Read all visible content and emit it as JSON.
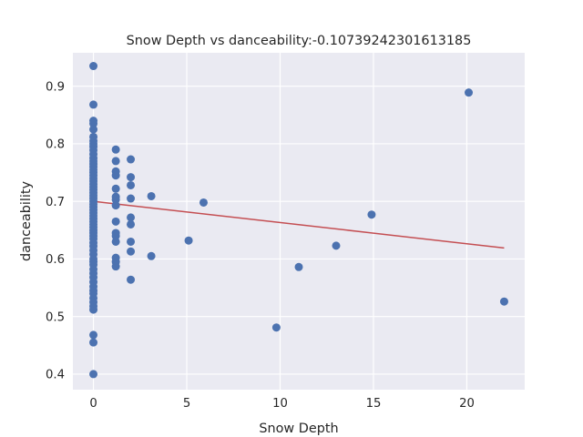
{
  "chart_data": {
    "type": "scatter",
    "title": "Snow Depth vs danceability:-0.10739242301613185",
    "xlabel": "Snow Depth",
    "ylabel": "danceability",
    "xlim": [
      -1.1,
      23.1
    ],
    "ylim": [
      0.373,
      0.958
    ],
    "x_ticks": [
      0,
      5,
      10,
      15,
      20
    ],
    "y_ticks": [
      0.4,
      0.5,
      0.6,
      0.7,
      0.8,
      0.9
    ],
    "x_tick_labels": [
      "0",
      "5",
      "10",
      "15",
      "20"
    ],
    "y_tick_labels": [
      "0.4",
      "0.5",
      "0.6",
      "0.7",
      "0.8",
      "0.9"
    ],
    "grid": true,
    "colors": {
      "background": "#eaeaf2",
      "grid": "#ffffff",
      "points": "#4c72b0",
      "trendline": "#c44e52"
    },
    "points": [
      [
        0,
        0.935
      ],
      [
        0,
        0.868
      ],
      [
        0,
        0.84
      ],
      [
        0,
        0.835
      ],
      [
        0,
        0.825
      ],
      [
        0,
        0.812
      ],
      [
        0,
        0.805
      ],
      [
        0,
        0.8
      ],
      [
        0,
        0.795
      ],
      [
        0,
        0.789
      ],
      [
        0,
        0.782
      ],
      [
        0,
        0.775
      ],
      [
        0,
        0.77
      ],
      [
        0,
        0.765
      ],
      [
        0,
        0.76
      ],
      [
        0,
        0.755
      ],
      [
        0,
        0.75
      ],
      [
        0,
        0.745
      ],
      [
        0,
        0.74
      ],
      [
        0,
        0.735
      ],
      [
        0,
        0.73
      ],
      [
        0,
        0.725
      ],
      [
        0,
        0.72
      ],
      [
        0,
        0.715
      ],
      [
        0,
        0.71
      ],
      [
        0,
        0.705
      ],
      [
        0,
        0.7
      ],
      [
        0,
        0.695
      ],
      [
        0,
        0.69
      ],
      [
        0,
        0.685
      ],
      [
        0,
        0.68
      ],
      [
        0,
        0.675
      ],
      [
        0,
        0.67
      ],
      [
        0,
        0.665
      ],
      [
        0,
        0.66
      ],
      [
        0,
        0.655
      ],
      [
        0,
        0.65
      ],
      [
        0,
        0.645
      ],
      [
        0,
        0.64
      ],
      [
        0,
        0.635
      ],
      [
        0,
        0.628
      ],
      [
        0,
        0.622
      ],
      [
        0,
        0.615
      ],
      [
        0,
        0.608
      ],
      [
        0,
        0.6
      ],
      [
        0,
        0.595
      ],
      [
        0,
        0.59
      ],
      [
        0,
        0.582
      ],
      [
        0,
        0.575
      ],
      [
        0,
        0.568
      ],
      [
        0,
        0.56
      ],
      [
        0,
        0.552
      ],
      [
        0,
        0.545
      ],
      [
        0,
        0.54
      ],
      [
        0,
        0.532
      ],
      [
        0,
        0.525
      ],
      [
        0,
        0.518
      ],
      [
        0,
        0.512
      ],
      [
        0,
        0.468
      ],
      [
        0,
        0.455
      ],
      [
        0,
        0.4
      ],
      [
        1.2,
        0.79
      ],
      [
        1.2,
        0.77
      ],
      [
        1.2,
        0.752
      ],
      [
        1.2,
        0.745
      ],
      [
        1.2,
        0.722
      ],
      [
        1.2,
        0.708
      ],
      [
        1.2,
        0.703
      ],
      [
        1.2,
        0.693
      ],
      [
        1.2,
        0.665
      ],
      [
        1.2,
        0.645
      ],
      [
        1.2,
        0.64
      ],
      [
        1.2,
        0.63
      ],
      [
        1.2,
        0.602
      ],
      [
        1.2,
        0.595
      ],
      [
        1.2,
        0.587
      ],
      [
        2.0,
        0.773
      ],
      [
        2.0,
        0.742
      ],
      [
        2.0,
        0.728
      ],
      [
        2.0,
        0.705
      ],
      [
        2.0,
        0.672
      ],
      [
        2.0,
        0.66
      ],
      [
        2.0,
        0.63
      ],
      [
        2.0,
        0.613
      ],
      [
        2.0,
        0.564
      ],
      [
        3.1,
        0.709
      ],
      [
        3.1,
        0.605
      ],
      [
        5.1,
        0.632
      ],
      [
        5.9,
        0.698
      ],
      [
        9.8,
        0.481
      ],
      [
        11.0,
        0.586
      ],
      [
        13.0,
        0.623
      ],
      [
        14.9,
        0.677
      ],
      [
        20.1,
        0.889
      ],
      [
        22.0,
        0.526
      ]
    ],
    "trendline": {
      "x": [
        0,
        22.0
      ],
      "y": [
        0.7,
        0.619
      ]
    }
  }
}
